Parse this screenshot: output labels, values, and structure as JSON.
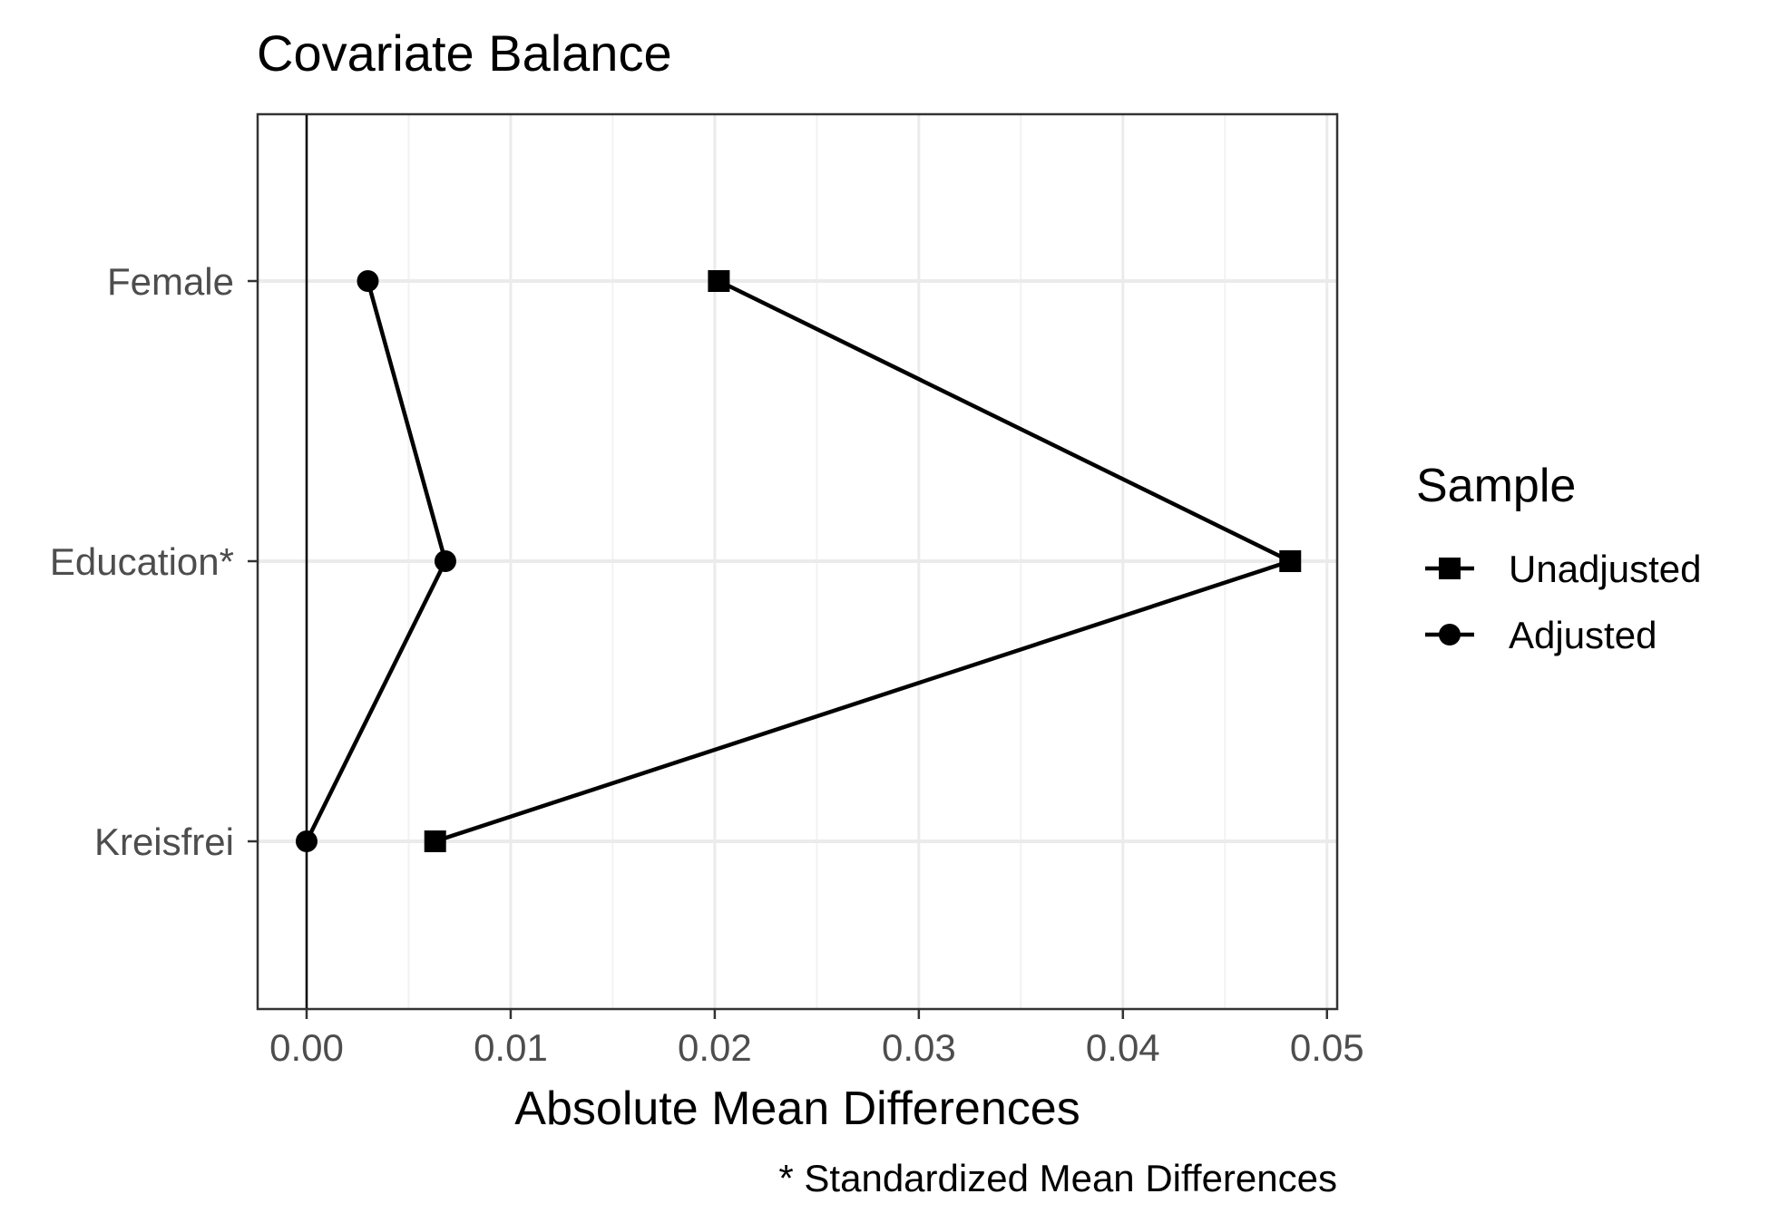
{
  "chart_data": {
    "type": "scatter",
    "title": "Covariate Balance",
    "xlabel": "Absolute Mean Differences",
    "caption": "* Standardized Mean Differences",
    "categories": [
      "Female",
      "Education*",
      "Kreisfrei"
    ],
    "xlim": [
      -0.0024,
      0.0505
    ],
    "xticks": [
      "0.00",
      "0.01",
      "0.02",
      "0.03",
      "0.04",
      "0.05"
    ],
    "xtick_values": [
      0,
      0.01,
      0.02,
      0.03,
      0.04,
      0.05
    ],
    "grid": true,
    "reference_line_x": 0,
    "legend": {
      "title": "Sample",
      "position": "right"
    },
    "series": [
      {
        "name": "Unadjusted",
        "marker": "square",
        "color": "#000000",
        "values": [
          0.0202,
          0.0482,
          0.0063
        ]
      },
      {
        "name": "Adjusted",
        "marker": "circle",
        "color": "#000000",
        "values": [
          0.003,
          0.0068,
          0.0
        ]
      }
    ]
  }
}
